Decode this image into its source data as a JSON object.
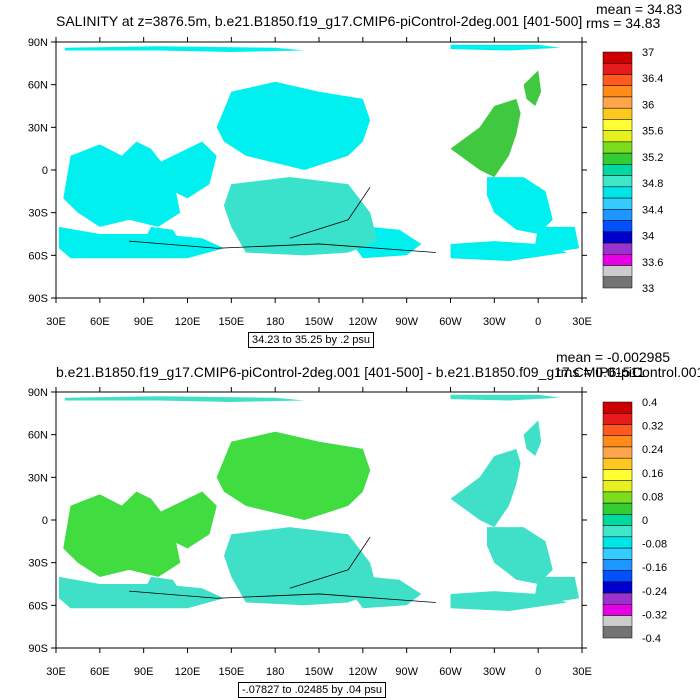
{
  "panels": [
    {
      "title": "SALINITY at z=3876.5m, b.e21.B1850.f19_g17.CMIP6-piControl-2deg.001 [401-500]",
      "mean": "mean = 34.83",
      "rms": "rms = 34.83",
      "range_note": "34.23 to 35.25 by .2 psu",
      "lat_labels": [
        "90N",
        "60N",
        "30N",
        "0",
        "30S",
        "60S",
        "90S"
      ],
      "lon_labels": [
        "30E",
        "60E",
        "90E",
        "120E",
        "150E",
        "180",
        "150W",
        "120W",
        "90W",
        "60W",
        "30W",
        "0",
        "30E"
      ],
      "colorbar_labels": [
        "37",
        "36.4",
        "36",
        "35.6",
        "35.2",
        "34.8",
        "34.4",
        "34",
        "33.6",
        "33"
      ],
      "colorbar_colors": [
        "#cc0000",
        "#e61a1a",
        "#ff5a1e",
        "#ff8c1a",
        "#ffa64d",
        "#ffc81e",
        "#ffff33",
        "#e6f01e",
        "#7cdc1e",
        "#33cc33",
        "#00d9a0",
        "#40e6c8",
        "#00e6e6",
        "#33ccff",
        "#1e96ff",
        "#0050ff",
        "#0000cc",
        "#9933cc",
        "#e600e6",
        "#cccccc",
        "#737373"
      ],
      "map_fill": "#00f0f0",
      "map_accent": "#40e0c8",
      "map_highlight": "#40c840"
    },
    {
      "title": "b.e21.B1850.f19_g17.CMIP6-piControl-2deg.001 [401-500] - b.e21.B1850.f09_g17.CMIP6-piControl.001",
      "mean": "mean = -0.002985",
      "rms": "rms = 0.01511",
      "range_note": "-.07827 to .02485 by .04 psu",
      "lat_labels": [
        "90N",
        "60N",
        "30N",
        "0",
        "30S",
        "60S",
        "90S"
      ],
      "lon_labels": [
        "30E",
        "60E",
        "90E",
        "120E",
        "150E",
        "180",
        "150W",
        "120W",
        "90W",
        "60W",
        "30W",
        "0",
        "30E"
      ],
      "colorbar_labels": [
        "0.4",
        "0.32",
        "0.24",
        "0.16",
        "0.08",
        "0",
        "-0.08",
        "-0.16",
        "-0.24",
        "-0.32",
        "-0.4"
      ],
      "colorbar_colors": [
        "#cc0000",
        "#e61a1a",
        "#ff5a1e",
        "#ff8c1a",
        "#ffa64d",
        "#ffc81e",
        "#ffff33",
        "#e6f01e",
        "#7cdc1e",
        "#33cc33",
        "#00d9a0",
        "#40e6c8",
        "#00e6e6",
        "#33ccff",
        "#1e96ff",
        "#0050ff",
        "#0000cc",
        "#9933cc",
        "#e600e6",
        "#cccccc",
        "#737373"
      ],
      "map_fill": "#40e0c8",
      "map_accent": "#40dc40",
      "map_highlight": "#00f0f0"
    }
  ],
  "chart_data": [
    {
      "type": "heatmap",
      "title": "SALINITY at z=3876.5m, b.e21.B1850.f19_g17.CMIP6-piControl-2deg.001 [401-500]",
      "xlabel": "",
      "ylabel": "",
      "x_ticks": [
        "30E",
        "60E",
        "90E",
        "120E",
        "150E",
        "180",
        "150W",
        "120W",
        "90W",
        "60W",
        "30W",
        "0",
        "30E"
      ],
      "y_ticks": [
        "90N",
        "60N",
        "30N",
        "0",
        "30S",
        "60S",
        "90S"
      ],
      "colorbar": [
        "33",
        "33.6",
        "34",
        "34.4",
        "34.8",
        "35.2",
        "35.6",
        "36",
        "36.4",
        "37"
      ],
      "mean": 34.83,
      "rms": 34.83,
      "contour_range": "34.23 to 35.25 by .2 psu",
      "units": "psu"
    },
    {
      "type": "heatmap",
      "title": "b.e21.B1850.f19_g17.CMIP6-piControl-2deg.001 [401-500] - b.e21.B1850.f09_g17.CMIP6-piControl.001",
      "xlabel": "",
      "ylabel": "",
      "x_ticks": [
        "30E",
        "60E",
        "90E",
        "120E",
        "150E",
        "180",
        "150W",
        "120W",
        "90W",
        "60W",
        "30W",
        "0",
        "30E"
      ],
      "y_ticks": [
        "90N",
        "60N",
        "30N",
        "0",
        "30S",
        "60S",
        "90S"
      ],
      "colorbar": [
        "-0.4",
        "-0.32",
        "-0.24",
        "-0.16",
        "-0.08",
        "0",
        "0.08",
        "0.16",
        "0.24",
        "0.32",
        "0.4"
      ],
      "mean": -0.002985,
      "rms": 0.01511,
      "contour_range": "-.07827 to .02485 by .04 psu",
      "units": "psu"
    }
  ]
}
